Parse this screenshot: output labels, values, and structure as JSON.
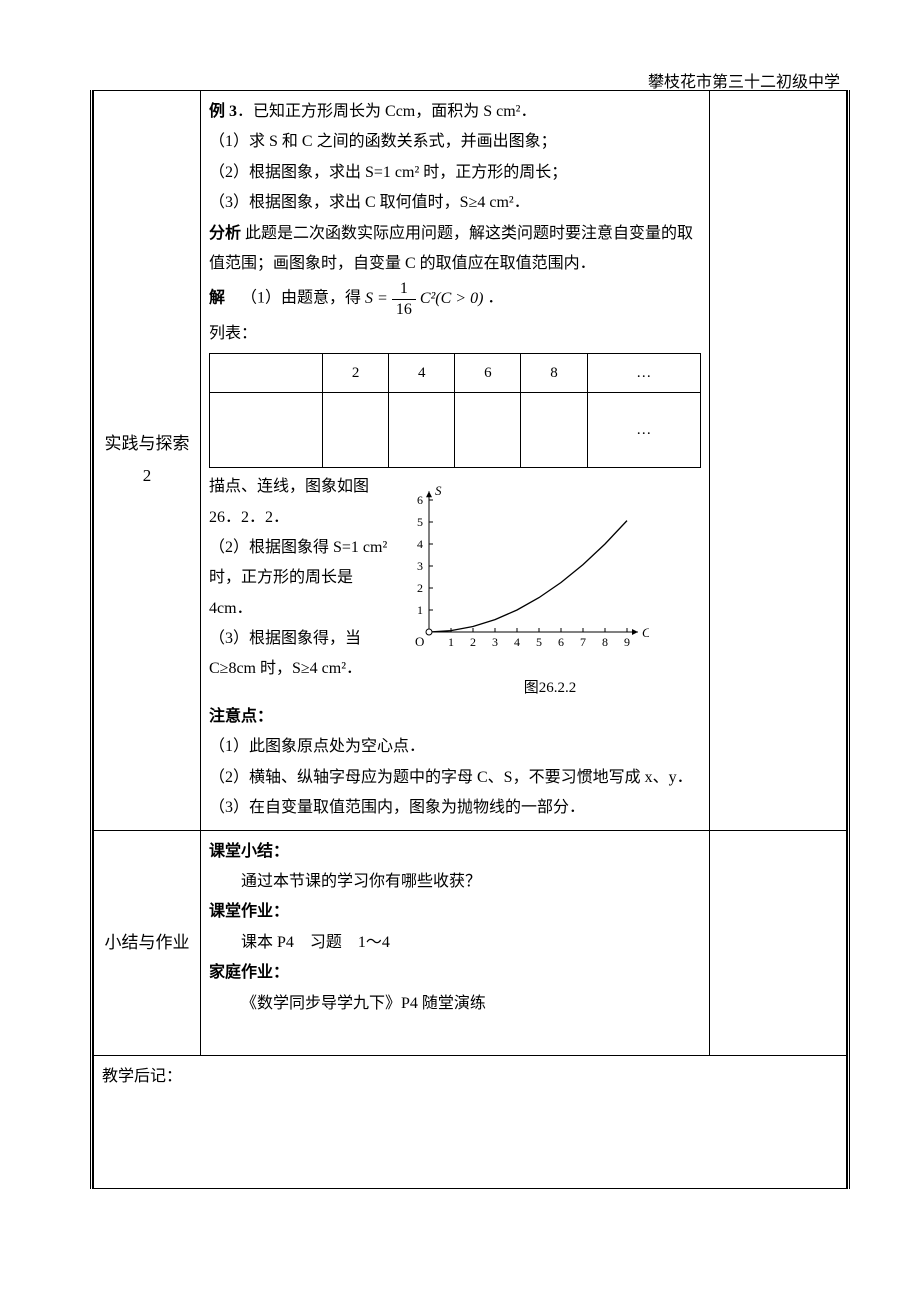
{
  "header": {
    "school": "攀枝花市第三十二初级中学"
  },
  "row1": {
    "label": "实践与探索 2",
    "example_label": "例 3",
    "example_text": "．已知正方形周长为 Ccm，面积为 S cm²．",
    "q1": "（1）求 S 和 C 之间的函数关系式，并画出图象；",
    "q2": "（2）根据图象，求出 S=1 cm² 时，正方形的周长；",
    "q3": "（3）根据图象，求出 C 取何值时，S≥4 cm²．",
    "analysis_label": "分析",
    "analysis_text": "  此题是二次函数实际应用问题，解这类问题时要注意自变量的取值范围；画图象时，自变量 C 的取值应在取值范围内．",
    "solution_label": "解",
    "solution_lead": "（1）由题意，得 ",
    "formula_lhs": "S = ",
    "formula_num": "1",
    "formula_den": "16",
    "formula_rhs": "C²(C > 0)",
    "formula_tail": " ．",
    "list_label": "列表：",
    "table": {
      "cols": [
        "",
        "2",
        "4",
        "6",
        "8",
        "…"
      ],
      "row2": [
        "",
        "",
        "",
        "",
        "",
        "…"
      ]
    },
    "draw_text": "描点、连线，图象如图 26．2．2．",
    "ans2": "（2）根据图象得 S=1 cm² 时，正方形的周长是 4cm．",
    "ans3": "（3）根据图象得，当 C≥8cm 时，S≥4 cm²．",
    "notes_label": "注意点：",
    "note1": "（1）此图象原点处为空心点．",
    "note2": "（2）横轴、纵轴字母应为题中的字母 C、S，不要习惯地写成 x、y．",
    "note3": "（3）在自变量取值范围内，图象为抛物线的一部分．",
    "chart": {
      "caption": "图26.2.2",
      "x_axis_label": "C",
      "y_axis_label": "S",
      "x_ticks": [
        1,
        2,
        3,
        4,
        5,
        6,
        7,
        8,
        9
      ],
      "y_ticks": [
        1,
        2,
        3,
        4,
        5,
        6
      ],
      "curve_points": [
        [
          0,
          0
        ],
        [
          1,
          0.0625
        ],
        [
          2,
          0.25
        ],
        [
          3,
          0.5625
        ],
        [
          4,
          1.0
        ],
        [
          5,
          1.5625
        ],
        [
          6,
          2.25
        ],
        [
          7,
          3.0625
        ],
        [
          8,
          4.0
        ],
        [
          9,
          5.0625
        ]
      ],
      "line_color": "#000000",
      "axis_color": "#000000",
      "background_color": "#ffffff",
      "xlim": [
        0,
        9.5
      ],
      "ylim": [
        0,
        6.5
      ],
      "hollow_origin": true
    }
  },
  "row2": {
    "label": "小结与作业",
    "summary_label": "课堂小结：",
    "summary_text": "通过本节课的学习你有哪些收获？",
    "classwork_label": "课堂作业：",
    "classwork_text": "课本 P4　习题　1～4",
    "homework_label": "家庭作业：",
    "homework_text": "《数学同步导学九下》P4  随堂演练"
  },
  "row3": {
    "label": "教学后记："
  }
}
